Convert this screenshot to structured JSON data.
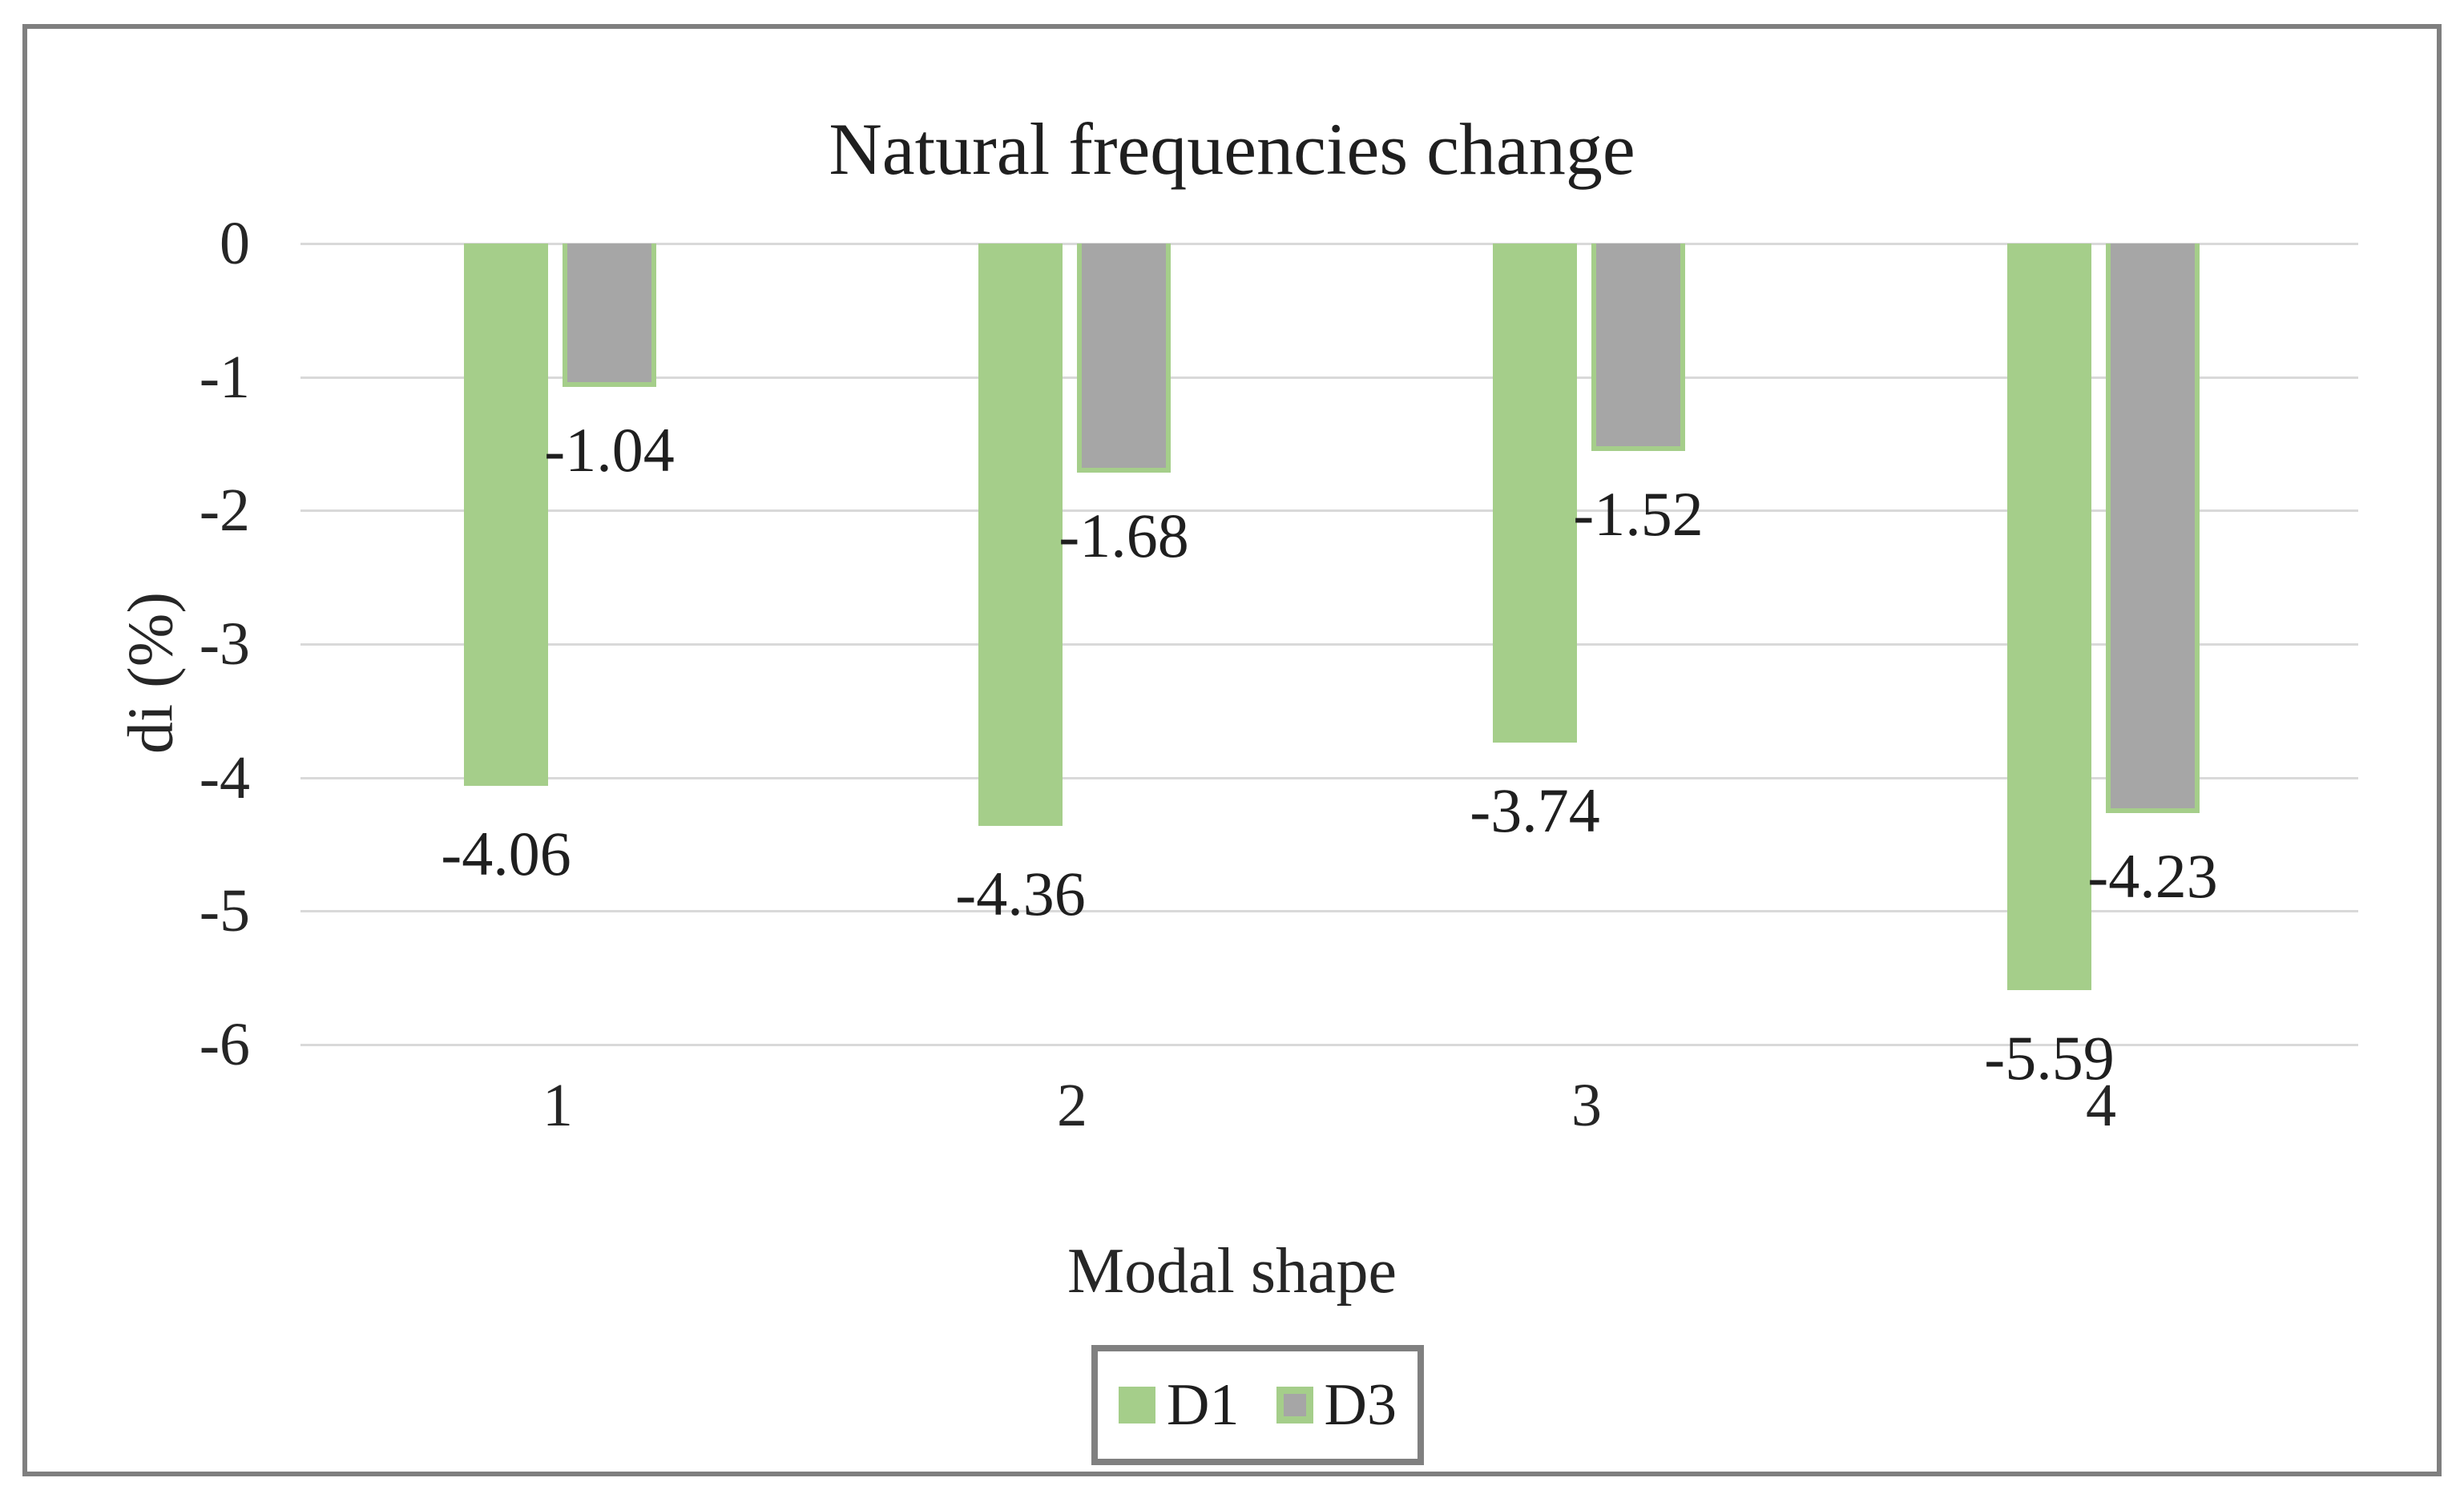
{
  "chart_data": {
    "type": "bar",
    "title": "Natural frequencies change",
    "xlabel": "Modal shape",
    "ylabel": "di (%)",
    "categories": [
      "1",
      "2",
      "3",
      "4"
    ],
    "series": [
      {
        "name": "D1",
        "values": [
          -4.06,
          -4.36,
          -3.74,
          -5.59
        ],
        "labels": [
          "-4.06",
          "-4.36",
          "-3.74",
          "-5.59"
        ],
        "fill": "#A5CE8A",
        "border": null
      },
      {
        "name": "D3",
        "values": [
          -1.04,
          -1.68,
          -1.52,
          -4.23
        ],
        "labels": [
          "-1.04",
          "-1.68",
          "-1.52",
          "-4.23"
        ],
        "fill": "#A6A6A6",
        "border": "#A5CE8A"
      }
    ],
    "ylim": [
      -6,
      0
    ],
    "yticks": [
      "0",
      "-1",
      "-2",
      "-3",
      "-4",
      "-5",
      "-6"
    ],
    "grid": true,
    "legend_position": "bottom",
    "data_labels": true
  },
  "colors": {
    "background": "#FFFFFF",
    "frame_border": "#7F7F7F",
    "legend_border": "#808080",
    "gridline": "#D9D9D9",
    "text": "#1F1F1F",
    "series_d1_green": "#A5CE8A",
    "series_d3_gray": "#A6A6A6",
    "series_d3_outline": "#A5CE8A"
  }
}
